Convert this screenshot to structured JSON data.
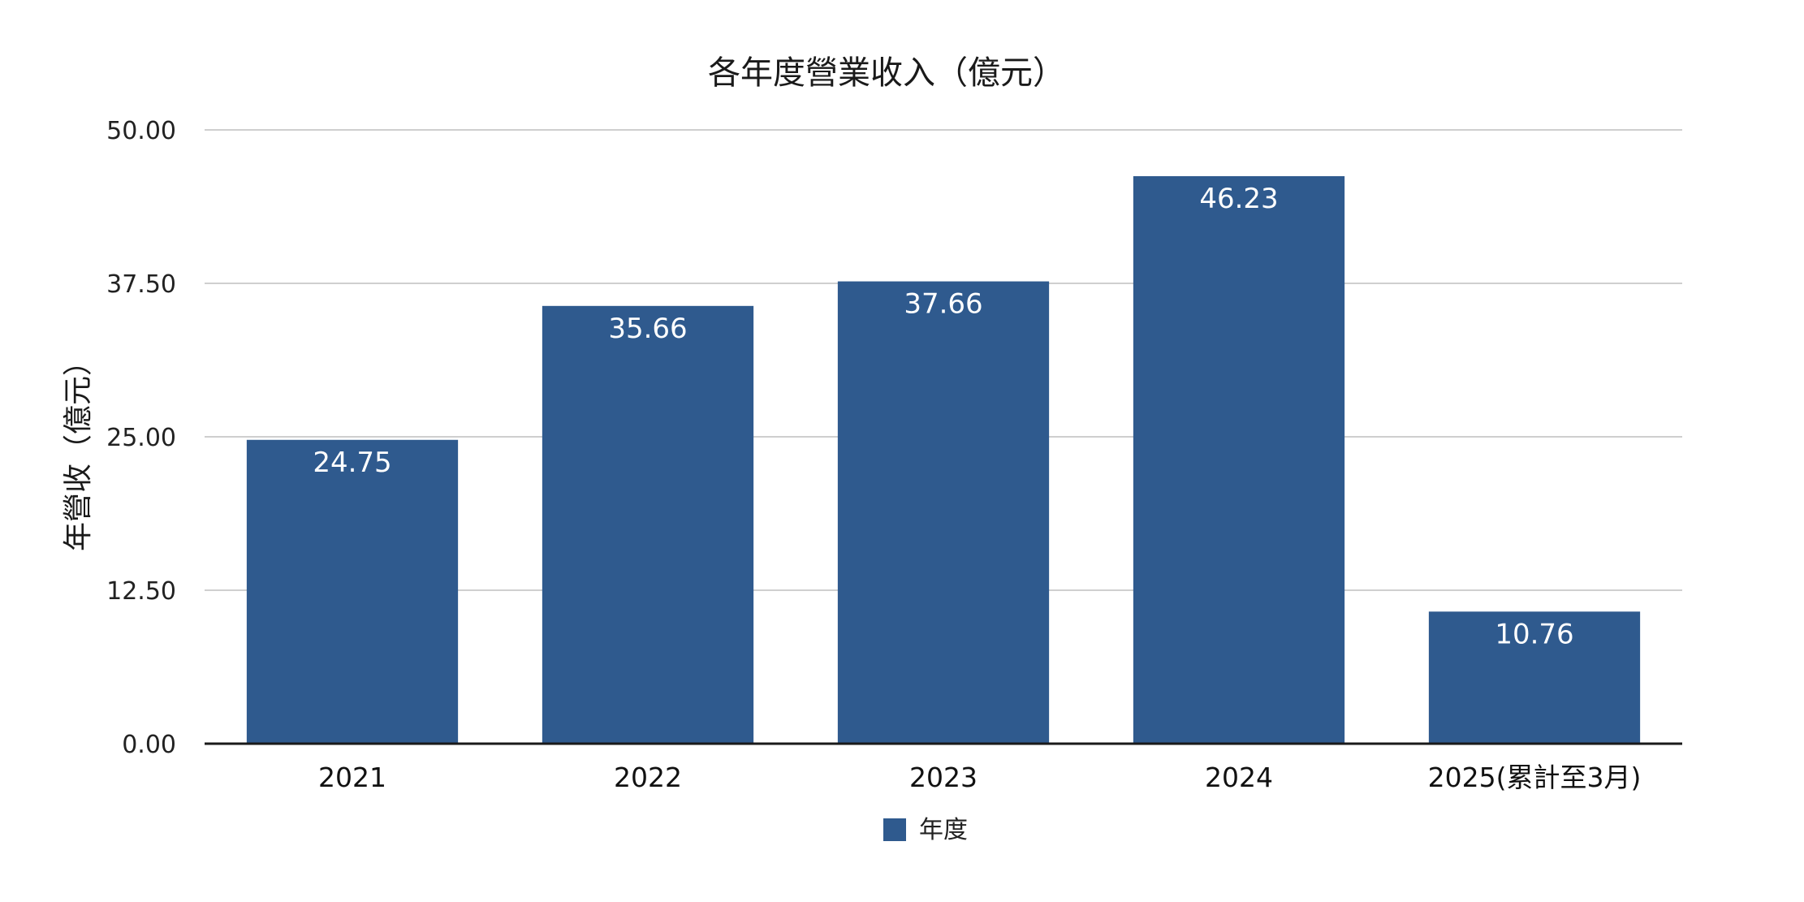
{
  "chart_data": {
    "type": "bar",
    "title": "各年度營業收入（億元）",
    "xlabel": "",
    "ylabel": "年營收（億元）",
    "categories": [
      "2021",
      "2022",
      "2023",
      "2024",
      "2025(累計至3月)"
    ],
    "series": [
      {
        "name": "年度",
        "values": [
          24.75,
          35.66,
          37.66,
          46.23,
          10.76
        ],
        "data_labels": [
          "24.75",
          "35.66",
          "37.66",
          "46.23",
          "10.76"
        ],
        "color": "#2f5a8e"
      }
    ],
    "ylim": [
      0,
      50
    ],
    "yticks": [
      0,
      12.5,
      25,
      37.5,
      50
    ],
    "ytick_labels": [
      "0.00",
      "12.50",
      "25.00",
      "37.50",
      "50.00"
    ],
    "grid": true,
    "legend": {
      "position": "bottom",
      "entries": [
        "年度"
      ]
    },
    "colors": {
      "bar": "#2f5a8e",
      "grid": "#cfcfcf",
      "axis": "#1a1a1a",
      "data_label": "#ffffff"
    }
  }
}
